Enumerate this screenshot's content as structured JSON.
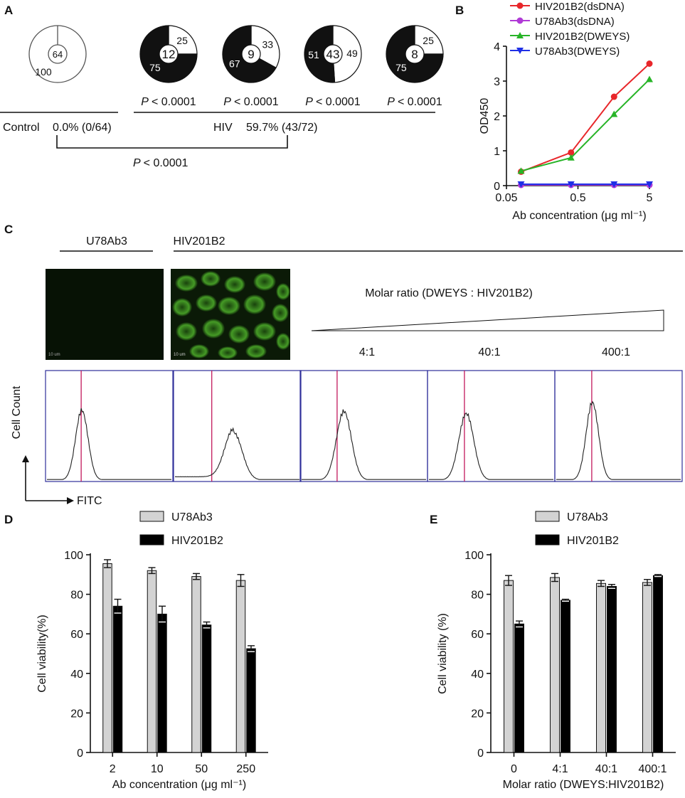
{
  "panels": {
    "a": {
      "label": "A",
      "control": {
        "label": "Control",
        "stat": "0.0% (0/64)",
        "center": "64",
        "slices": [
          {
            "value": 100,
            "label": "100",
            "fill": "white"
          }
        ]
      },
      "hiv": {
        "label": "HIV",
        "stat": "59.7% (43/72)",
        "donuts": [
          {
            "center": "12",
            "p": "< 0.0001",
            "slices": [
              {
                "value": 25,
                "label": "25",
                "fill": "white"
              },
              {
                "value": 75,
                "label": "75",
                "fill": "black"
              }
            ]
          },
          {
            "center": "9",
            "p": "< 0.0001",
            "slices": [
              {
                "value": 33,
                "label": "33",
                "fill": "white"
              },
              {
                "value": 67,
                "label": "67",
                "fill": "black"
              }
            ]
          },
          {
            "center": "43",
            "p": "< 0.0001",
            "slices": [
              {
                "value": 49,
                "label": "49",
                "fill": "white"
              },
              {
                "value": 51,
                "label": "51",
                "fill": "black"
              }
            ]
          },
          {
            "center": "8",
            "p": "< 0.0001",
            "slices": [
              {
                "value": 25,
                "label": "25",
                "fill": "white"
              },
              {
                "value": 75,
                "label": "75",
                "fill": "black"
              }
            ]
          }
        ]
      },
      "p_italic": "P",
      "comparison_p": "< 0.0001"
    },
    "b": {
      "label": "B"
    },
    "c": {
      "label": "C",
      "group_left": "U78Ab3",
      "group_right": "HIV201B2",
      "ratio_title": "Molar ratio (DWEYS : HIV201B2)",
      "ratios": [
        "4:1",
        "40:1",
        "400:1"
      ],
      "scale_bar": "10 um",
      "y_axis": "Cell Count",
      "x_axis": "FITC"
    },
    "d": {
      "label": "D"
    },
    "e": {
      "label": "E"
    }
  },
  "chart_data": [
    {
      "id": "B",
      "type": "line",
      "xlabel": "Ab concentration (μg ml⁻¹)",
      "ylabel": "OD450",
      "x_scale": "log",
      "xlim": [
        0.05,
        5
      ],
      "ylim": [
        0,
        4
      ],
      "x_ticks": [
        "0.05",
        "0.5",
        "5"
      ],
      "y_ticks": [
        "0",
        "1",
        "2",
        "3",
        "4"
      ],
      "x": [
        0.08,
        0.4,
        1.6,
        5
      ],
      "legend_position": "top",
      "series": [
        {
          "name": "HIV201B2(dsDNA)",
          "color": "#e8262a",
          "marker": "circle",
          "values": [
            0.4,
            0.95,
            2.55,
            3.5
          ]
        },
        {
          "name": "U78Ab3(dsDNA)",
          "color": "#b03ad6",
          "marker": "circle",
          "values": [
            0.02,
            0.02,
            0.02,
            0.02
          ]
        },
        {
          "name": "HIV201B2(DWEYS)",
          "color": "#27b427",
          "marker": "triangle-up",
          "values": [
            0.42,
            0.8,
            2.05,
            3.05
          ]
        },
        {
          "name": "U78Ab3(DWEYS)",
          "color": "#1f2fe6",
          "marker": "triangle-down",
          "values": [
            0.04,
            0.04,
            0.04,
            0.04
          ]
        }
      ]
    },
    {
      "id": "C-flow",
      "type": "histogram",
      "xlabel": "FITC",
      "ylabel": "Cell Count",
      "panels": [
        {
          "label": "U78Ab3",
          "peak_position": 0.28,
          "peak_height": 0.63,
          "width": 0.05,
          "marker": 0.28,
          "background": "#fefbec"
        },
        {
          "label": "HIV201B2",
          "peak_position": 0.47,
          "peak_height": 0.43,
          "width": 0.07,
          "marker": 0.3,
          "background": "#ffffff"
        },
        {
          "label": "4:1",
          "peak_position": 0.34,
          "peak_height": 0.62,
          "width": 0.06,
          "marker": 0.29,
          "background": "#ffffff"
        },
        {
          "label": "40:1",
          "peak_position": 0.3,
          "peak_height": 0.6,
          "width": 0.06,
          "marker": 0.29,
          "background": "#ffffff"
        },
        {
          "label": "400:1",
          "peak_position": 0.29,
          "peak_height": 0.7,
          "width": 0.05,
          "marker": 0.29,
          "background": "#ffffff"
        }
      ]
    },
    {
      "id": "D",
      "type": "bar",
      "xlabel": "Ab concentration (μg ml⁻¹)",
      "ylabel": "Cell viability(%)",
      "ylim": [
        0,
        100
      ],
      "y_ticks": [
        "0",
        "20",
        "40",
        "60",
        "80",
        "100"
      ],
      "categories": [
        "2",
        "10",
        "50",
        "250"
      ],
      "legend_position": "top",
      "series": [
        {
          "name": "U78Ab3",
          "color": "#d3d3d3",
          "values": [
            95.5,
            92,
            89,
            87
          ],
          "errors": [
            2,
            1.5,
            1.5,
            3
          ]
        },
        {
          "name": "HIV201B2",
          "color": "#000000",
          "values": [
            74,
            70,
            64.5,
            52.5
          ],
          "errors": [
            3.5,
            4,
            1.5,
            1.5
          ]
        }
      ]
    },
    {
      "id": "E",
      "type": "bar",
      "xlabel": "Molar ratio (DWEYS:HIV201B2)",
      "ylabel": "Cell viability (%)",
      "ylim": [
        0,
        100
      ],
      "y_ticks": [
        "0",
        "20",
        "40",
        "60",
        "80",
        "100"
      ],
      "categories": [
        "0",
        "4:1",
        "40:1",
        "400:1"
      ],
      "legend_position": "top",
      "series": [
        {
          "name": "U78Ab3",
          "color": "#d3d3d3",
          "values": [
            87,
            88.5,
            85.5,
            86
          ],
          "errors": [
            2.5,
            2,
            1.5,
            1.5
          ]
        },
        {
          "name": "HIV201B2",
          "color": "#000000",
          "values": [
            65,
            77,
            84,
            89.5
          ],
          "errors": [
            1.5,
            0.5,
            1,
            0.5
          ]
        }
      ]
    }
  ]
}
